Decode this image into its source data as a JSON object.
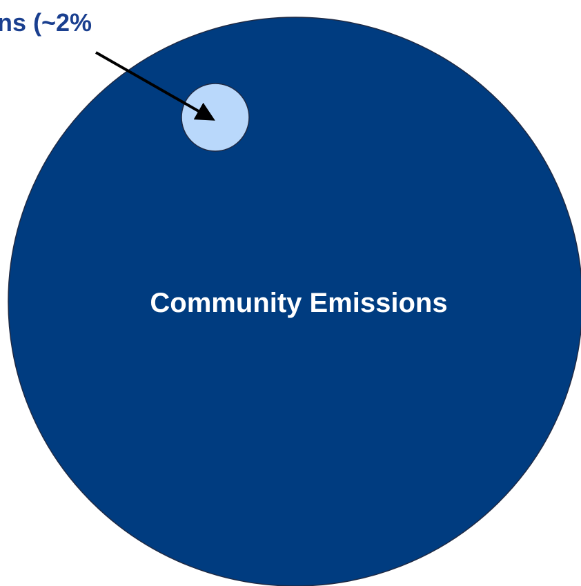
{
  "diagram": {
    "main_circle": {
      "label": "Community Emissions",
      "fill_color": "#003c80",
      "stroke_color": "#1f2a44",
      "label_color": "#ffffff"
    },
    "sub_circle": {
      "fill_color": "#b9d8fb",
      "stroke_color": "#1f2a44"
    },
    "callout": {
      "text": "ns (~2%",
      "text_color": "#1a3f8f",
      "arrow_color": "#000000"
    }
  }
}
